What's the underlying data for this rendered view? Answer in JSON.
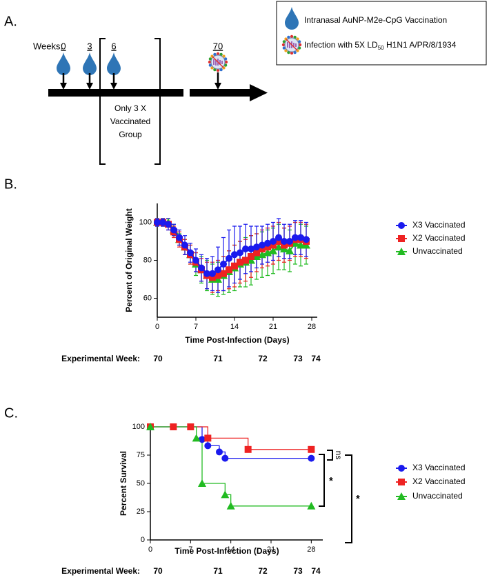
{
  "panel_labels": [
    "A.",
    "B.",
    "C."
  ],
  "timeline": {
    "weeks_label": "Weeks:",
    "weeks": [
      "0",
      "3",
      "6",
      "70"
    ],
    "group_label": [
      "Only 3 X",
      "Vaccinated",
      "Group"
    ]
  },
  "key": {
    "vaccination": "Intranasal AuNP-M2e-CpG Vaccination",
    "infection": [
      "Infection with 5X LD",
      "50",
      " H1N1 A/PR/8/1934"
    ]
  },
  "chart_data": [
    {
      "type": "line",
      "ylabel": "Percent of Original Weight",
      "xlabel": "Time Post-Infection (Days)",
      "xlim": [
        0,
        29
      ],
      "xticks": [
        0,
        7,
        14,
        21,
        28
      ],
      "ylim": [
        50,
        110
      ],
      "yticks": [
        60,
        80,
        100
      ],
      "legend": "right",
      "week_axis": {
        "label": "Experimental Week:",
        "labels": [
          "70",
          "71",
          "72",
          "73",
          "74"
        ]
      },
      "x": [
        0,
        1,
        2,
        3,
        4,
        5,
        6,
        7,
        8,
        9,
        10,
        11,
        12,
        13,
        14,
        15,
        16,
        17,
        18,
        19,
        20,
        21,
        22,
        23,
        24,
        25,
        26,
        27
      ],
      "series": [
        {
          "name": "Unvaccinated",
          "color": "#22bb22",
          "marker": "triangle",
          "values": [
            100,
            100,
            100,
            96,
            91,
            87,
            83,
            78,
            75,
            72,
            70,
            70,
            72,
            74,
            76,
            78,
            79,
            80,
            82,
            83,
            84,
            85,
            87,
            86,
            85,
            89,
            88,
            88
          ],
          "errors": [
            2,
            2,
            2,
            3,
            3,
            4,
            5,
            6,
            7,
            8,
            8,
            9,
            10,
            11,
            12,
            12,
            13,
            13,
            12,
            12,
            12,
            12,
            12,
            11,
            11,
            11,
            11,
            10
          ]
        },
        {
          "name": "X2 Vaccinated",
          "color": "#ee2222",
          "marker": "square",
          "values": [
            100,
            100,
            99,
            95,
            91,
            87,
            83,
            79,
            75,
            72,
            71,
            72,
            73,
            75,
            77,
            79,
            80,
            82,
            84,
            86,
            87,
            88,
            90,
            88,
            89,
            91,
            91,
            90
          ],
          "errors": [
            2,
            2,
            3,
            3,
            4,
            4,
            5,
            5,
            6,
            7,
            8,
            8,
            9,
            10,
            11,
            11,
            11,
            11,
            10,
            10,
            10,
            10,
            10,
            9,
            9,
            9,
            9,
            9
          ]
        },
        {
          "name": "X3 Vaccinated",
          "color": "#1a1aee",
          "marker": "circle",
          "values": [
            100,
            100,
            99,
            96,
            92,
            88,
            84,
            80,
            76,
            73,
            73,
            75,
            78,
            81,
            83,
            84,
            86,
            86,
            87,
            88,
            89,
            90,
            92,
            90,
            90,
            92,
            92,
            91
          ],
          "errors": [
            2,
            2,
            3,
            3,
            4,
            5,
            5,
            6,
            7,
            8,
            9,
            12,
            14,
            15,
            15,
            14,
            13,
            12,
            11,
            10,
            10,
            10,
            10,
            9,
            9,
            9,
            9,
            9
          ]
        }
      ]
    },
    {
      "type": "step",
      "ylabel": "Percent Survival",
      "xlabel": "Time Post-Infection (Days)",
      "xlim": [
        0,
        30
      ],
      "xticks": [
        0,
        7,
        14,
        21,
        28
      ],
      "ylim": [
        0,
        100
      ],
      "yticks": [
        0,
        25,
        50,
        75,
        100
      ],
      "legend": "right",
      "week_axis": {
        "label": "Experimental Week:",
        "labels": [
          "70",
          "71",
          "72",
          "73",
          "74"
        ]
      },
      "annotations": [
        "ns",
        "*",
        "*"
      ],
      "series": [
        {
          "name": "X3 Vaccinated",
          "color": "#1a1aee",
          "marker": "circle",
          "x": [
            0,
            9,
            10,
            12,
            13,
            28
          ],
          "values": [
            100,
            88.9,
            83.3,
            77.8,
            72.2,
            72.2
          ]
        },
        {
          "name": "X2 Vaccinated",
          "color": "#ee2222",
          "marker": "square",
          "x": [
            0,
            4,
            7,
            10,
            17,
            28
          ],
          "values": [
            100,
            100,
            100,
            90,
            80,
            80
          ]
        },
        {
          "name": "Unvaccinated",
          "color": "#22bb22",
          "marker": "triangle",
          "x": [
            0,
            8,
            9,
            13,
            14,
            28
          ],
          "values": [
            100,
            90,
            50,
            40,
            30,
            30
          ]
        }
      ]
    }
  ]
}
